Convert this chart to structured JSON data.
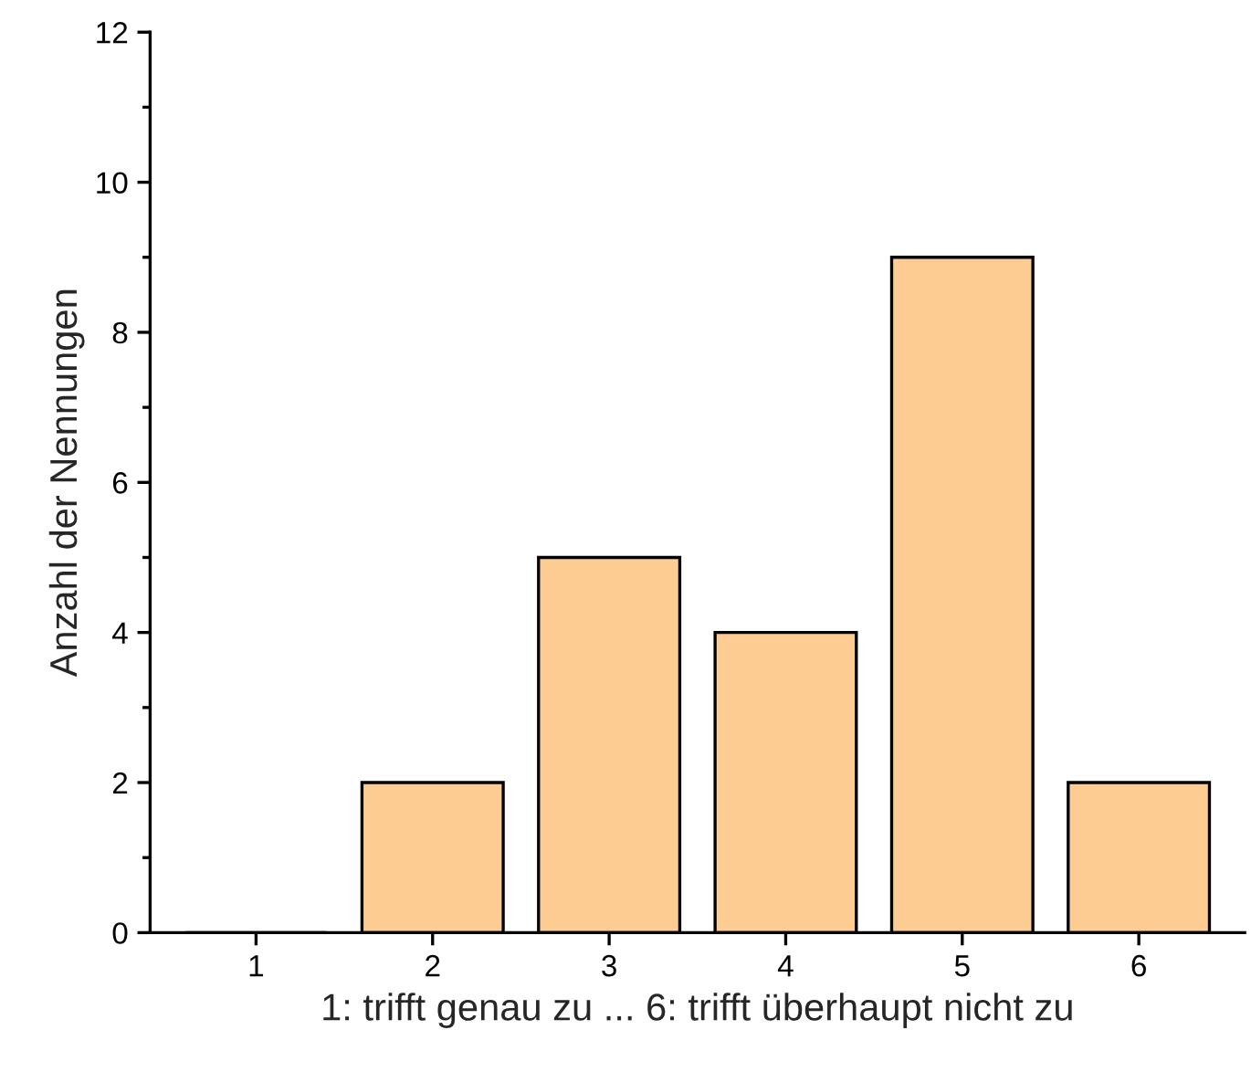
{
  "chart_data": {
    "type": "bar",
    "xlabel": "1: trifft genau zu ... 6: trifft überhaupt nicht zu",
    "ylabel": "Anzahl der Nennungen",
    "categories": [
      "1",
      "2",
      "3",
      "4",
      "5",
      "6"
    ],
    "values": [
      0,
      2,
      5,
      4,
      9,
      2
    ],
    "color": "#fdcc92",
    "ylim": [
      0,
      12
    ],
    "yticks": [
      0,
      {
        "value": 1,
        "label": null
      },
      2,
      {
        "value": 3,
        "label": null
      },
      4,
      {
        "value": 5,
        "label": null
      },
      6,
      {
        "value": 7,
        "label": null
      },
      8,
      {
        "value": 9,
        "label": null
      },
      10,
      {
        "value": 11,
        "label": null
      },
      12
    ],
    "grid": false,
    "legend": false
  }
}
